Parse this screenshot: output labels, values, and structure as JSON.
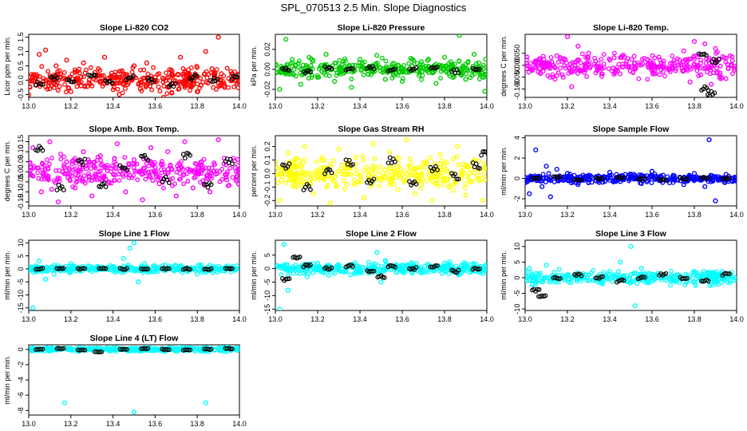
{
  "figure": {
    "title": "SPL_070513  2.5 Min. Slope Diagnostics"
  },
  "chart_data": [
    {
      "type": "scatter",
      "title": "Slope Li-820 CO2",
      "xlabel": "",
      "ylabel": "Licor ppm per min.",
      "xlim": [
        13.0,
        14.0
      ],
      "ylim": [
        -0.6,
        1.6
      ],
      "xticks": [
        13.0,
        13.2,
        13.4,
        13.6,
        13.8,
        14.0
      ],
      "yticks": [
        -0.5,
        0.0,
        0.5,
        1.0,
        1.5
      ],
      "ytick_labels": [
        "-0.5",
        "0.0",
        "0.5",
        "1.0",
        "1.5"
      ],
      "color": "#ff0000",
      "series": [
        {
          "name": "all",
          "x": [
            13.02,
            13.05,
            13.08,
            13.1,
            13.13,
            13.15,
            13.18,
            13.2,
            13.23,
            13.26,
            13.3,
            13.33,
            13.36,
            13.4,
            13.43,
            13.46,
            13.5,
            13.53,
            13.56,
            13.6,
            13.64,
            13.68,
            13.72,
            13.76,
            13.8,
            13.84,
            13.87,
            13.9,
            13.93,
            13.96,
            13.99
          ],
          "y": [
            0.1,
            0.9,
            1.05,
            -0.3,
            0.5,
            0.2,
            0.7,
            -0.4,
            0.3,
            0.6,
            -0.2,
            0.4,
            0.8,
            0.1,
            -0.5,
            0.2,
            0.5,
            -0.3,
            0.6,
            0.1,
            -0.6,
            0.3,
            0.8,
            0.2,
            -0.4,
            1.0,
            0.4,
            1.5,
            -0.2,
            0.3,
            0.1
          ]
        },
        {
          "name": "highlight",
          "x": [
            13.05,
            13.12,
            13.2,
            13.3,
            13.38,
            13.48,
            13.58,
            13.68,
            13.78,
            13.88,
            13.98
          ],
          "y": [
            -0.1,
            0.1,
            0.0,
            0.2,
            -0.1,
            0.1,
            0.0,
            -0.2,
            0.1,
            0.0,
            0.1
          ]
        }
      ]
    },
    {
      "type": "scatter",
      "title": "Slope Li-820 Pressure",
      "xlabel": "",
      "ylabel": "kPa per min.",
      "xlim": [
        13.0,
        14.0
      ],
      "ylim": [
        -0.028,
        0.035
      ],
      "xticks": [
        13.0,
        13.2,
        13.4,
        13.6,
        13.8,
        14.0
      ],
      "yticks": [
        -0.02,
        0.0,
        0.02
      ],
      "ytick_labels": [
        "-0.02",
        "0.00",
        "0.02"
      ],
      "color": "#00cc00",
      "series": [
        {
          "name": "all",
          "x": [
            13.02,
            13.05,
            13.08,
            13.12,
            13.16,
            13.2,
            13.24,
            13.28,
            13.32,
            13.36,
            13.4,
            13.44,
            13.48,
            13.52,
            13.56,
            13.6,
            13.64,
            13.68,
            13.72,
            13.76,
            13.8,
            13.84,
            13.87,
            13.9,
            13.94,
            13.97,
            13.99
          ],
          "y": [
            -0.02,
            0.03,
            0.01,
            -0.015,
            0.012,
            -0.008,
            0.015,
            -0.012,
            0.008,
            -0.018,
            0.01,
            -0.005,
            0.014,
            -0.01,
            0.006,
            -0.012,
            0.011,
            -0.006,
            0.009,
            -0.014,
            0.012,
            -0.008,
            0.034,
            -0.01,
            0.015,
            -0.006,
            -0.022
          ]
        },
        {
          "name": "highlight",
          "x": [
            13.05,
            13.15,
            13.25,
            13.35,
            13.45,
            13.55,
            13.65,
            13.75,
            13.85,
            13.95
          ],
          "y": [
            0.0,
            -0.002,
            0.001,
            0.0,
            0.002,
            -0.001,
            0.0,
            0.001,
            -0.002,
            0.0
          ]
        }
      ]
    },
    {
      "type": "scatter",
      "title": "Slope Li-820 Temp.",
      "xlabel": "",
      "ylabel": "degrees C per min.",
      "xlim": [
        13.0,
        14.0
      ],
      "ylim": [
        -0.135,
        0.13
      ],
      "xticks": [
        13.0,
        13.2,
        13.4,
        13.6,
        13.8,
        14.0
      ],
      "yticks": [
        -0.1,
        -0.05,
        0.0,
        0.05
      ],
      "ytick_labels": [
        "-0.100",
        "-0.050",
        "0.000",
        "0.050"
      ],
      "color": "#ff00ff",
      "series": [
        {
          "name": "all",
          "x": [
            13.15,
            13.18,
            13.2,
            13.22,
            13.25,
            13.28,
            13.3,
            13.75,
            13.78,
            13.8,
            13.83,
            13.85,
            13.88,
            13.9,
            13.92,
            13.95,
            13.98
          ],
          "y": [
            0.04,
            -0.05,
            0.12,
            -0.09,
            0.08,
            -0.03,
            0.05,
            0.06,
            -0.07,
            0.1,
            -0.04,
            0.09,
            -0.08,
            0.07,
            -0.05,
            0.03,
            0.02
          ]
        },
        {
          "name": "highlight",
          "x": [
            13.84,
            13.85,
            13.88,
            13.9
          ],
          "y": [
            0.05,
            -0.1,
            -0.12,
            0.02
          ]
        }
      ]
    },
    {
      "type": "scatter",
      "title": "Slope Amb. Box Temp.",
      "xlabel": "",
      "ylabel": "degrees C per min.",
      "xlim": [
        13.0,
        14.0
      ],
      "ylim": [
        -0.17,
        0.18
      ],
      "xticks": [
        13.0,
        13.2,
        13.4,
        13.6,
        13.8,
        14.0
      ],
      "yticks": [
        -0.15,
        -0.1,
        -0.05,
        0.0,
        0.05,
        0.1,
        0.15
      ],
      "ytick_labels": [
        "-0.15",
        "-0.10",
        "-0.05",
        "0.00",
        "0.05",
        "0.10",
        "0.15"
      ],
      "color": "#ff00ff",
      "series": [
        {
          "name": "all",
          "x": [
            13.02,
            13.06,
            13.1,
            13.14,
            13.18,
            13.22,
            13.26,
            13.3,
            13.34,
            13.38,
            13.42,
            13.46,
            13.5,
            13.54,
            13.58,
            13.62,
            13.66,
            13.7,
            13.74,
            13.78,
            13.82,
            13.86,
            13.9,
            13.94,
            13.98
          ],
          "y": [
            0.12,
            -0.1,
            0.15,
            -0.15,
            0.05,
            -0.08,
            0.1,
            -0.12,
            0.08,
            -0.05,
            0.14,
            -0.1,
            0.06,
            -0.14,
            0.12,
            -0.06,
            0.1,
            -0.12,
            0.15,
            -0.08,
            0.05,
            -0.1,
            0.16,
            -0.04,
            0.02
          ]
        },
        {
          "name": "highlight",
          "x": [
            13.05,
            13.15,
            13.25,
            13.35,
            13.45,
            13.55,
            13.65,
            13.75,
            13.85,
            13.95
          ],
          "y": [
            0.12,
            -0.08,
            0.05,
            -0.06,
            0.02,
            0.07,
            -0.04,
            0.08,
            -0.07,
            0.05
          ]
        }
      ]
    },
    {
      "type": "scatter",
      "title": "Slope Gas Stream RH",
      "xlabel": "",
      "ylabel": "percent per min.",
      "xlim": [
        13.0,
        14.0
      ],
      "ylim": [
        -0.24,
        0.28
      ],
      "xticks": [
        13.0,
        13.2,
        13.4,
        13.6,
        13.8,
        14.0
      ],
      "yticks": [
        -0.2,
        -0.1,
        0.0,
        0.1,
        0.2
      ],
      "ytick_labels": [
        "-0.2",
        "-0.1",
        "0.0",
        "0.1",
        "0.2"
      ],
      "color": "#ffff00",
      "series": [
        {
          "name": "all",
          "x": [
            13.02,
            13.06,
            13.1,
            13.14,
            13.18,
            13.22,
            13.26,
            13.3,
            13.34,
            13.38,
            13.42,
            13.46,
            13.5,
            13.54,
            13.58,
            13.62,
            13.66,
            13.7,
            13.74,
            13.78,
            13.82,
            13.86,
            13.9,
            13.94,
            13.98
          ],
          "y": [
            -0.2,
            0.15,
            -0.1,
            0.2,
            -0.15,
            0.1,
            -0.22,
            0.18,
            -0.08,
            0.12,
            -0.18,
            0.22,
            -0.05,
            0.16,
            -0.12,
            0.25,
            -0.15,
            0.08,
            -0.2,
            0.14,
            -0.1,
            0.2,
            -0.16,
            0.1,
            -0.2
          ]
        },
        {
          "name": "highlight",
          "x": [
            13.05,
            13.15,
            13.25,
            13.35,
            13.45,
            13.55,
            13.65,
            13.75,
            13.85,
            13.95,
            13.99
          ],
          "y": [
            0.05,
            -0.1,
            0.02,
            0.08,
            -0.05,
            0.1,
            -0.08,
            0.03,
            -0.02,
            0.06,
            0.15
          ]
        }
      ]
    },
    {
      "type": "scatter",
      "title": "Slope Sample Flow",
      "xlabel": "",
      "ylabel": "ml/min per min.",
      "xlim": [
        13.0,
        14.0
      ],
      "ylim": [
        -2.7,
        4.2
      ],
      "xticks": [
        13.0,
        13.2,
        13.4,
        13.6,
        13.8,
        14.0
      ],
      "yticks": [
        -2,
        0,
        2,
        4
      ],
      "ytick_labels": [
        "-2",
        "0",
        "2",
        "4"
      ],
      "color": "#0000ff",
      "series": [
        {
          "name": "all",
          "x": [
            13.02,
            13.05,
            13.08,
            13.1,
            13.12,
            13.15,
            13.2,
            13.25,
            13.3,
            13.35,
            13.4,
            13.45,
            13.5,
            13.55,
            13.6,
            13.65,
            13.7,
            13.75,
            13.8,
            13.85,
            13.87,
            13.9,
            13.95,
            13.98
          ],
          "y": [
            -1.5,
            2.8,
            -0.8,
            1.2,
            -1.8,
            0.9,
            0.5,
            -0.6,
            0.3,
            -0.4,
            0.6,
            -0.3,
            0.4,
            -0.5,
            0.7,
            -0.4,
            0.3,
            -0.6,
            0.5,
            -0.8,
            3.8,
            -2.2,
            0.4,
            -0.3
          ]
        },
        {
          "name": "highlight",
          "x": [
            13.05,
            13.15,
            13.25,
            13.35,
            13.45,
            13.55,
            13.65,
            13.75,
            13.85,
            13.95
          ],
          "y": [
            0.0,
            0.1,
            -0.1,
            0.0,
            0.1,
            0.0,
            -0.1,
            0.0,
            0.1,
            0.0
          ]
        }
      ]
    },
    {
      "type": "scatter",
      "title": "Slope Line 1 Flow",
      "xlabel": "",
      "ylabel": "ml/min per min.",
      "xlim": [
        13.0,
        14.0
      ],
      "ylim": [
        -16,
        11
      ],
      "xticks": [
        13.0,
        13.2,
        13.4,
        13.6,
        13.8,
        14.0
      ],
      "yticks": [
        -15,
        -10,
        -5,
        0,
        5,
        10
      ],
      "ytick_labels": [
        "-15",
        "-10",
        "-5",
        "0",
        "5",
        "10"
      ],
      "color": "#00ffff",
      "series": [
        {
          "name": "all",
          "x": [
            13.02,
            13.05,
            13.08,
            13.12,
            13.2,
            13.3,
            13.4,
            13.45,
            13.48,
            13.5,
            13.52,
            13.55,
            13.6,
            13.7,
            13.8,
            13.9,
            13.98
          ],
          "y": [
            -15,
            3,
            -4,
            -2,
            2,
            -1,
            1,
            4,
            8,
            10,
            -5,
            2,
            -1,
            1,
            -2,
            1,
            0
          ]
        },
        {
          "name": "highlight",
          "x": [
            13.05,
            13.15,
            13.25,
            13.35,
            13.45,
            13.55,
            13.65,
            13.75,
            13.85,
            13.95
          ],
          "y": [
            0,
            0,
            0,
            0,
            0,
            0,
            0,
            0,
            0,
            0
          ]
        }
      ]
    },
    {
      "type": "scatter",
      "title": "Slope Line 2 Flow",
      "xlabel": "",
      "ylabel": "ml/min per min.",
      "xlim": [
        13.0,
        14.0
      ],
      "ylim": [
        -15.5,
        10.5
      ],
      "xticks": [
        13.0,
        13.2,
        13.4,
        13.6,
        13.8,
        14.0
      ],
      "yticks": [
        -15,
        -10,
        -5,
        0,
        5
      ],
      "ytick_labels": [
        "-15",
        "-10",
        "-5",
        "0",
        "5"
      ],
      "color": "#00ffff",
      "series": [
        {
          "name": "all",
          "x": [
            13.02,
            13.04,
            13.06,
            13.1,
            13.15,
            13.2,
            13.3,
            13.4,
            13.48,
            13.5,
            13.52,
            13.6,
            13.7,
            13.8,
            13.9,
            13.98
          ],
          "y": [
            -15,
            9,
            -8,
            4,
            -3,
            2,
            1,
            -1,
            6,
            -5,
            3,
            1,
            -1,
            2,
            1,
            0
          ]
        },
        {
          "name": "highlight",
          "x": [
            13.05,
            13.1,
            13.15,
            13.25,
            13.35,
            13.45,
            13.5,
            13.55,
            13.65,
            13.75,
            13.85,
            13.95
          ],
          "y": [
            -4,
            4,
            1,
            0,
            1,
            -1,
            -3,
            1,
            0,
            1,
            -1,
            0
          ]
        }
      ]
    },
    {
      "type": "scatter",
      "title": "Slope Line 3 Flow",
      "xlabel": "",
      "ylabel": "ml/min per min.",
      "xlim": [
        13.0,
        14.0
      ],
      "ylim": [
        -10.5,
        12
      ],
      "xticks": [
        13.0,
        13.2,
        13.4,
        13.6,
        13.8,
        14.0
      ],
      "yticks": [
        -10,
        -5,
        0,
        5,
        10
      ],
      "ytick_labels": [
        "-10",
        "-5",
        "0",
        "5",
        "10"
      ],
      "color": "#00ffff",
      "series": [
        {
          "name": "all",
          "x": [
            13.02,
            13.05,
            13.1,
            13.2,
            13.3,
            13.4,
            13.45,
            13.5,
            13.52,
            13.55,
            13.6,
            13.7,
            13.8,
            13.9,
            13.98
          ],
          "y": [
            3,
            -2,
            4,
            1,
            -1,
            2,
            5,
            10,
            -9,
            3,
            1,
            -1,
            2,
            1,
            0
          ]
        },
        {
          "name": "highlight",
          "x": [
            13.05,
            13.08,
            13.15,
            13.25,
            13.35,
            13.45,
            13.55,
            13.65,
            13.75,
            13.85,
            13.95
          ],
          "y": [
            -4,
            -6,
            0,
            1,
            0,
            -1,
            0,
            1,
            0,
            -1,
            1
          ]
        }
      ]
    },
    {
      "type": "scatter",
      "title": "Slope Line 4 (LT) Flow",
      "xlabel": "",
      "ylabel": "ml/min per min.",
      "xlim": [
        13.0,
        14.0
      ],
      "ylim": [
        -8.6,
        0.6
      ],
      "xticks": [
        13.0,
        13.2,
        13.4,
        13.6,
        13.8,
        14.0
      ],
      "yticks": [
        -8,
        -6,
        -4,
        -2,
        0
      ],
      "ytick_labels": [
        "-8",
        "-6",
        "-4",
        "-2",
        "0"
      ],
      "color": "#00ffff",
      "series": [
        {
          "name": "all",
          "x": [
            13.02,
            13.1,
            13.17,
            13.2,
            13.3,
            13.4,
            13.5,
            13.6,
            13.7,
            13.8,
            13.84,
            13.9,
            13.98
          ],
          "y": [
            0.2,
            -0.2,
            -7,
            0.1,
            -0.1,
            0.2,
            -8.2,
            0.1,
            -0.2,
            0.2,
            -7,
            0.1,
            0
          ]
        },
        {
          "name": "highlight",
          "x": [
            13.05,
            13.15,
            13.25,
            13.33,
            13.45,
            13.55,
            13.65,
            13.75,
            13.85,
            13.95
          ],
          "y": [
            0,
            0.1,
            -0.1,
            -0.3,
            0,
            0.1,
            0,
            -0.1,
            0,
            0.1
          ]
        }
      ]
    }
  ]
}
